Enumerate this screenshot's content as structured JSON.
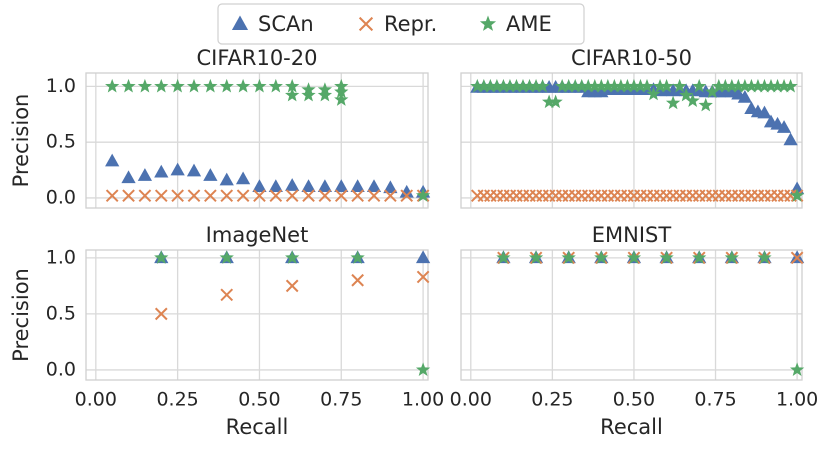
{
  "chart_data": [
    {
      "type": "scatter",
      "title": "CIFAR10-20",
      "ylabel": "Precision",
      "xlim": [
        -0.03,
        1.015
      ],
      "ylim": [
        -0.09,
        1.12
      ],
      "xticks": [
        {
          "value": 0,
          "label": "0.00"
        },
        {
          "value": 0.25,
          "label": "0.25"
        },
        {
          "value": 0.5,
          "label": "0.50"
        },
        {
          "value": 0.75,
          "label": "0.75"
        },
        {
          "value": 1,
          "label": "1.00"
        }
      ],
      "yticks": [
        {
          "value": 0,
          "label": "0.0"
        },
        {
          "value": 0.5,
          "label": "0.5"
        },
        {
          "value": 1,
          "label": "1.0"
        }
      ],
      "grid": true,
      "legend": "upper center",
      "series": [
        {
          "name": "SCAn",
          "color": "#4c72b0",
          "marker": "triangle",
          "x": [
            0.05,
            0.1,
            0.15,
            0.2,
            0.25,
            0.3,
            0.35,
            0.4,
            0.45,
            0.5,
            0.55,
            0.6,
            0.65,
            0.7,
            0.75,
            0.8,
            0.85,
            0.9,
            0.95,
            1.0
          ],
          "values": [
            0.33,
            0.18,
            0.2,
            0.23,
            0.25,
            0.24,
            0.2,
            0.16,
            0.17,
            0.1,
            0.1,
            0.11,
            0.1,
            0.1,
            0.1,
            0.1,
            0.1,
            0.09,
            0.05,
            0.05
          ]
        },
        {
          "name": "Repr.",
          "color": "#dd8452",
          "marker": "x",
          "x": [
            0.05,
            0.1,
            0.15,
            0.2,
            0.25,
            0.3,
            0.35,
            0.4,
            0.45,
            0.5,
            0.55,
            0.6,
            0.65,
            0.7,
            0.75,
            0.8,
            0.85,
            0.9,
            0.95,
            1.0
          ],
          "values": [
            0.02,
            0.02,
            0.02,
            0.02,
            0.02,
            0.02,
            0.02,
            0.02,
            0.02,
            0.02,
            0.02,
            0.02,
            0.02,
            0.02,
            0.02,
            0.02,
            0.02,
            0.02,
            0.02,
            0.02
          ]
        },
        {
          "name": "AME",
          "color": "#55a868",
          "marker": "star",
          "x": [
            0.05,
            0.1,
            0.15,
            0.2,
            0.25,
            0.3,
            0.35,
            0.4,
            0.45,
            0.5,
            0.55,
            0.6,
            0.6,
            0.65,
            0.65,
            0.7,
            0.7,
            0.75,
            0.75,
            0.75,
            1.0
          ],
          "values": [
            1,
            1,
            1,
            1,
            1,
            1,
            1,
            1,
            1,
            1,
            1,
            1,
            0.92,
            0.97,
            0.92,
            0.97,
            0.92,
            1,
            0.95,
            0.88,
            0.02
          ]
        }
      ]
    },
    {
      "type": "scatter",
      "title": "CIFAR10-50",
      "xlim": [
        -0.03,
        1.015
      ],
      "ylim": [
        -0.09,
        1.12
      ],
      "xticks": [
        {
          "value": 0,
          "label": "0.00"
        },
        {
          "value": 0.25,
          "label": "0.25"
        },
        {
          "value": 0.5,
          "label": "0.50"
        },
        {
          "value": 0.75,
          "label": "0.75"
        },
        {
          "value": 1,
          "label": "1.00"
        }
      ],
      "yticks": [
        {
          "value": 0,
          "label": "0.0"
        },
        {
          "value": 0.5,
          "label": "0.5"
        },
        {
          "value": 1,
          "label": "1.0"
        }
      ],
      "grid": true,
      "series": [
        {
          "name": "SCAn",
          "color": "#4c72b0",
          "marker": "triangle",
          "x": [
            0.02,
            0.04,
            0.06,
            0.08,
            0.1,
            0.12,
            0.14,
            0.16,
            0.18,
            0.2,
            0.22,
            0.24,
            0.26,
            0.28,
            0.3,
            0.32,
            0.34,
            0.36,
            0.38,
            0.4,
            0.42,
            0.44,
            0.46,
            0.48,
            0.5,
            0.52,
            0.54,
            0.56,
            0.58,
            0.6,
            0.62,
            0.64,
            0.66,
            0.68,
            0.7,
            0.72,
            0.74,
            0.76,
            0.78,
            0.8,
            0.82,
            0.84,
            0.86,
            0.88,
            0.9,
            0.92,
            0.94,
            0.96,
            0.98,
            1.0
          ],
          "values": [
            0.99,
            0.99,
            0.99,
            0.99,
            0.99,
            0.99,
            0.99,
            0.99,
            0.99,
            0.99,
            0.99,
            0.99,
            0.99,
            0.99,
            0.99,
            0.99,
            0.99,
            0.95,
            0.95,
            0.95,
            0.97,
            0.97,
            0.97,
            0.97,
            0.97,
            0.97,
            0.97,
            0.97,
            0.96,
            0.96,
            0.96,
            0.96,
            0.96,
            0.96,
            0.96,
            0.95,
            0.95,
            0.95,
            0.95,
            0.95,
            0.93,
            0.9,
            0.8,
            0.77,
            0.76,
            0.68,
            0.66,
            0.63,
            0.52,
            0.08
          ]
        },
        {
          "name": "Repr.",
          "color": "#dd8452",
          "marker": "x",
          "x": [
            0.02,
            0.04,
            0.06,
            0.08,
            0.1,
            0.12,
            0.14,
            0.16,
            0.18,
            0.2,
            0.22,
            0.24,
            0.26,
            0.28,
            0.3,
            0.32,
            0.34,
            0.36,
            0.38,
            0.4,
            0.42,
            0.44,
            0.46,
            0.48,
            0.5,
            0.52,
            0.54,
            0.56,
            0.58,
            0.6,
            0.62,
            0.64,
            0.66,
            0.68,
            0.7,
            0.72,
            0.74,
            0.76,
            0.78,
            0.8,
            0.82,
            0.84,
            0.86,
            0.88,
            0.9,
            0.92,
            0.94,
            0.96,
            0.98,
            1.0
          ],
          "values": [
            0.02,
            0.02,
            0.02,
            0.02,
            0.02,
            0.02,
            0.02,
            0.02,
            0.02,
            0.02,
            0.02,
            0.02,
            0.02,
            0.02,
            0.02,
            0.02,
            0.02,
            0.02,
            0.02,
            0.02,
            0.02,
            0.02,
            0.02,
            0.02,
            0.02,
            0.02,
            0.02,
            0.02,
            0.02,
            0.02,
            0.02,
            0.02,
            0.02,
            0.02,
            0.02,
            0.02,
            0.02,
            0.02,
            0.02,
            0.02,
            0.02,
            0.02,
            0.02,
            0.02,
            0.02,
            0.02,
            0.02,
            0.02,
            0.02,
            0.02
          ]
        },
        {
          "name": "AME",
          "color": "#55a868",
          "marker": "star",
          "x": [
            0.02,
            0.04,
            0.06,
            0.08,
            0.1,
            0.12,
            0.14,
            0.16,
            0.18,
            0.2,
            0.22,
            0.24,
            0.26,
            0.28,
            0.3,
            0.32,
            0.34,
            0.36,
            0.38,
            0.4,
            0.42,
            0.44,
            0.46,
            0.48,
            0.5,
            0.52,
            0.54,
            0.56,
            0.58,
            0.6,
            0.62,
            0.64,
            0.66,
            0.68,
            0.7,
            0.72,
            0.74,
            0.76,
            0.78,
            0.8,
            0.82,
            0.84,
            0.86,
            0.88,
            0.9,
            0.92,
            0.94,
            0.96,
            0.98,
            1.0
          ],
          "values": [
            1,
            1,
            1,
            1,
            1,
            1,
            1,
            1,
            1,
            1,
            1,
            0.86,
            0.86,
            1,
            1,
            1,
            1,
            1,
            1,
            1,
            1,
            1,
            1,
            1,
            1,
            1,
            1,
            0.93,
            1,
            1,
            0.85,
            1,
            0.92,
            0.87,
            1,
            0.83,
            0.95,
            1,
            1,
            1,
            1,
            1,
            1,
            1,
            1,
            1,
            1,
            1,
            1,
            0.02
          ]
        }
      ]
    },
    {
      "type": "scatter",
      "title": "ImageNet",
      "ylabel": "Precision",
      "xlabel": "Recall",
      "xlim": [
        -0.03,
        1.015
      ],
      "ylim": [
        -0.09,
        1.07
      ],
      "xticks": [
        {
          "value": 0,
          "label": "0.00"
        },
        {
          "value": 0.25,
          "label": "0.25"
        },
        {
          "value": 0.5,
          "label": "0.50"
        },
        {
          "value": 0.75,
          "label": "0.75"
        },
        {
          "value": 1,
          "label": "1.00"
        }
      ],
      "yticks": [
        {
          "value": 0,
          "label": "0.0"
        },
        {
          "value": 0.5,
          "label": "0.5"
        },
        {
          "value": 1,
          "label": "1.0"
        }
      ],
      "grid": true,
      "series": [
        {
          "name": "SCAn",
          "color": "#4c72b0",
          "marker": "triangle",
          "x": [
            0.2,
            0.4,
            0.6,
            0.8,
            1.0
          ],
          "values": [
            1,
            1,
            1,
            1,
            1
          ]
        },
        {
          "name": "Repr.",
          "color": "#dd8452",
          "marker": "x",
          "x": [
            0.2,
            0.4,
            0.6,
            0.8,
            1.0
          ],
          "values": [
            0.5,
            0.67,
            0.75,
            0.8,
            0.83
          ]
        },
        {
          "name": "AME",
          "color": "#55a868",
          "marker": "star",
          "x": [
            0.2,
            0.4,
            0.6,
            0.8,
            1.0
          ],
          "values": [
            1,
            1,
            1,
            1,
            0
          ]
        }
      ]
    },
    {
      "type": "scatter",
      "title": "EMNIST",
      "xlabel": "Recall",
      "xlim": [
        -0.03,
        1.015
      ],
      "ylim": [
        -0.09,
        1.07
      ],
      "xticks": [
        {
          "value": 0,
          "label": "0.00"
        },
        {
          "value": 0.25,
          "label": "0.25"
        },
        {
          "value": 0.5,
          "label": "0.50"
        },
        {
          "value": 0.75,
          "label": "0.75"
        },
        {
          "value": 1,
          "label": "1.00"
        }
      ],
      "yticks": [
        {
          "value": 0,
          "label": "0.0"
        },
        {
          "value": 0.5,
          "label": "0.5"
        },
        {
          "value": 1,
          "label": "1.0"
        }
      ],
      "grid": true,
      "series": [
        {
          "name": "SCAn",
          "color": "#4c72b0",
          "marker": "triangle",
          "x": [
            0.1,
            0.2,
            0.3,
            0.4,
            0.5,
            0.6,
            0.7,
            0.8,
            0.9,
            1.0
          ],
          "values": [
            1,
            1,
            1,
            1,
            1,
            1,
            1,
            1,
            1,
            1
          ]
        },
        {
          "name": "Repr.",
          "color": "#dd8452",
          "marker": "x",
          "x": [
            0.1,
            0.2,
            0.3,
            0.4,
            0.5,
            0.6,
            0.7,
            0.8,
            0.9,
            1.0
          ],
          "values": [
            1,
            1,
            1,
            1,
            1,
            1,
            1,
            1,
            1,
            1
          ]
        },
        {
          "name": "AME",
          "color": "#55a868",
          "marker": "star",
          "x": [
            0.1,
            0.2,
            0.3,
            0.4,
            0.5,
            0.6,
            0.7,
            0.8,
            0.9,
            1.0
          ],
          "values": [
            1,
            1,
            1,
            1,
            1,
            1,
            1,
            1,
            1,
            0
          ]
        }
      ]
    }
  ]
}
